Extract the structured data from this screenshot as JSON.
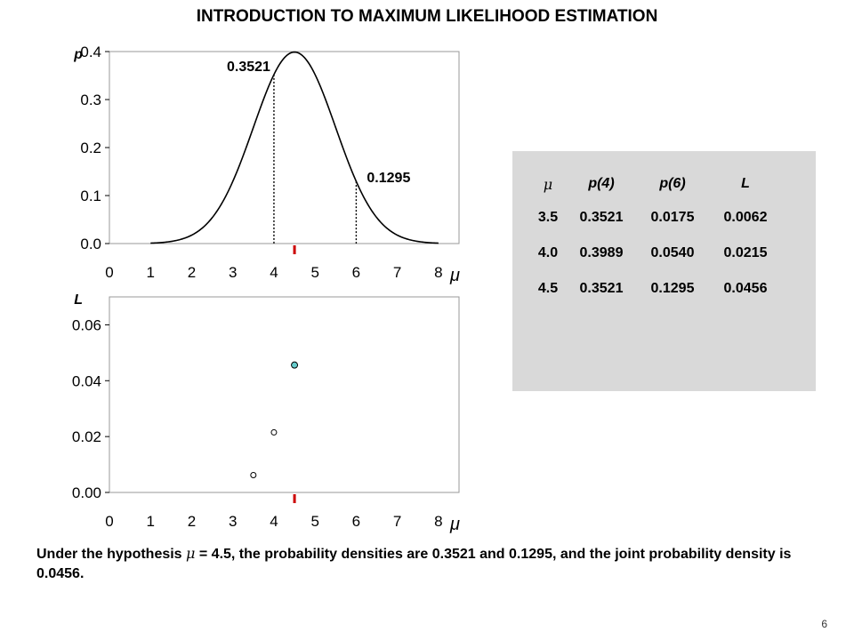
{
  "title": "INTRODUCTION TO MAXIMUM LIKELIHOOD ESTIMATION",
  "chart_data": [
    {
      "type": "line",
      "ylabel": "p",
      "xlabel": "μ",
      "xlim": [
        0,
        8.5
      ],
      "ylim": [
        0,
        0.4
      ],
      "xticks": [
        "0",
        "1",
        "2",
        "3",
        "4",
        "5",
        "6",
        "7",
        "8"
      ],
      "yticks": [
        "0.0",
        "0.1",
        "0.2",
        "0.3",
        "0.4"
      ],
      "mean": 4.5,
      "sd": 1,
      "curve_range": [
        1,
        8
      ],
      "markers": [
        {
          "x": 4,
          "y": 0.3521,
          "label": "0.3521"
        },
        {
          "x": 6,
          "y": 0.1295,
          "label": "0.1295"
        }
      ],
      "hypothesis_mark": 4.5
    },
    {
      "type": "scatter",
      "ylabel": "L",
      "xlabel": "μ",
      "xlim": [
        0,
        8.5
      ],
      "ylim": [
        0,
        0.07
      ],
      "xticks": [
        "0",
        "1",
        "2",
        "3",
        "4",
        "5",
        "6",
        "7",
        "8"
      ],
      "yticks": [
        "0.00",
        "0.02",
        "0.04",
        "0.06"
      ],
      "points": [
        {
          "x": 3.5,
          "y": 0.0062
        },
        {
          "x": 4.0,
          "y": 0.0215
        },
        {
          "x": 4.5,
          "y": 0.0456,
          "highlight": true
        }
      ],
      "highlight_color": "#66cccc",
      "hypothesis_mark": 4.5
    }
  ],
  "table": {
    "headers": [
      "μ",
      "p(4)",
      "p(6)",
      "L"
    ],
    "rows": [
      [
        "3.5",
        "0.3521",
        "0.0175",
        "0.0062"
      ],
      [
        "4.0",
        "0.3989",
        "0.0540",
        "0.0215"
      ],
      [
        "4.5",
        "0.3521",
        "0.1295",
        "0.0456"
      ]
    ]
  },
  "caption": {
    "part1": "Under the hypothesis ",
    "mu": "μ",
    "part2": " = 4.5, the probability densities are 0.3521 and 0.1295, and the joint probability density is 0.0456."
  },
  "page_number": "6",
  "colors": {
    "mark": "#cc0000",
    "highlight": "#66cccc",
    "panel": "#d9d9d9"
  }
}
